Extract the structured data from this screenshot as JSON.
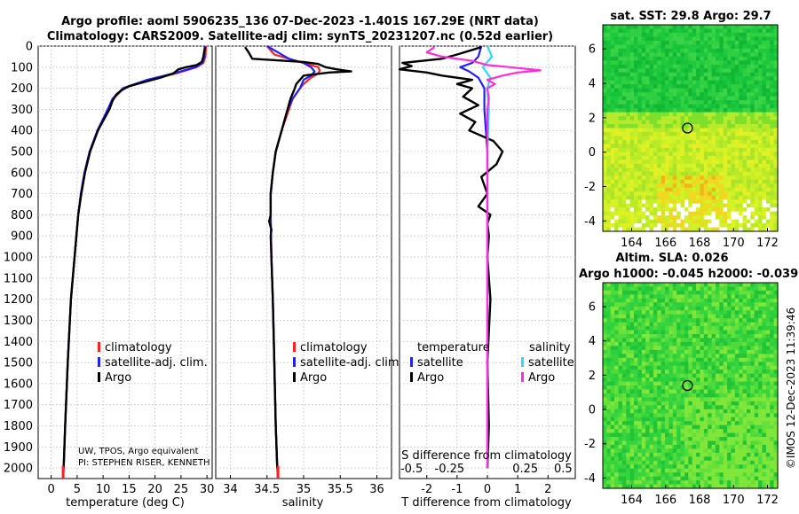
{
  "header": {
    "line1": "Argo profile: aoml 5906235_136 07-Dec-2023 -1.401S 167.29E (NRT data)",
    "line2": "Climatology: CARS2009. Satellite-adj clim: synTS_20231207.nc (0.52d earlier)"
  },
  "colors": {
    "climatology": "#ff2020",
    "satellite": "#1f1fff",
    "argo": "#000000",
    "sal_satellite": "#30d8ff",
    "sal_argo": "#ff2bdc"
  },
  "depth_axis": {
    "range": [
      0,
      2050
    ],
    "ticks": [
      0,
      100,
      200,
      300,
      400,
      500,
      600,
      700,
      800,
      900,
      1000,
      1100,
      1200,
      1300,
      1400,
      1500,
      1600,
      1700,
      1800,
      1900,
      2000
    ]
  },
  "chart_data": [
    {
      "type": "line",
      "id": "temperature",
      "xlabel": "temperature (deg C)",
      "xlim": [
        -2.5,
        31
      ],
      "xticks": [
        0,
        5,
        10,
        15,
        20,
        25,
        30
      ],
      "legend": [
        "climatology",
        "satellite-adj. clim.",
        "Argo"
      ],
      "note_line1": "UW, TPOS, Argo equivalent",
      "note_line2": "PI: STEPHEN RISER, KENNETH",
      "series": [
        {
          "name": "climatology",
          "color_key": "climatology",
          "depth": [
            0,
            50,
            80,
            100,
            130,
            160,
            200,
            250,
            300,
            400,
            500,
            600,
            700,
            800,
            1000,
            1200,
            1500,
            1800,
            2000,
            2050
          ],
          "values": [
            29.8,
            29.7,
            29.3,
            28.0,
            24.0,
            19.0,
            14.0,
            12.0,
            11.0,
            9.0,
            7.5,
            6.5,
            5.8,
            5.2,
            4.5,
            3.8,
            3.2,
            2.7,
            2.4,
            2.3
          ]
        },
        {
          "name": "satellite-adj. clim.",
          "color_key": "satellite",
          "depth": [
            0,
            50,
            80,
            100,
            130,
            160,
            200,
            250,
            300,
            400,
            500,
            600,
            700,
            800,
            1000,
            1200,
            1500,
            1800,
            2000,
            2050
          ],
          "values": [
            29.6,
            29.5,
            29.1,
            27.8,
            23.5,
            18.5,
            13.8,
            11.8,
            10.9,
            8.9,
            7.4,
            6.4,
            5.7,
            5.2,
            4.5,
            3.8,
            3.2,
            2.7,
            2.4,
            2.3
          ]
        },
        {
          "name": "Argo",
          "color_key": "argo",
          "depth": [
            5,
            50,
            75,
            90,
            100,
            110,
            130,
            150,
            170,
            190,
            210,
            230,
            260,
            300,
            400,
            500,
            600,
            700,
            800,
            1000,
            1200,
            1500,
            1800,
            2000
          ],
          "values": [
            29.6,
            29.3,
            29.0,
            28.0,
            26.0,
            24.5,
            23.5,
            21.0,
            18.0,
            15.0,
            13.5,
            12.5,
            11.8,
            11.2,
            9.0,
            7.5,
            6.5,
            5.8,
            5.2,
            4.5,
            3.8,
            3.2,
            2.7,
            2.4
          ]
        }
      ]
    },
    {
      "type": "line",
      "id": "salinity",
      "xlabel": "salinity",
      "xlim": [
        33.8,
        36.2
      ],
      "xticks": [
        34,
        34.5,
        35,
        35.5,
        36
      ],
      "legend": [
        "climatology",
        "satellite-adj. clim.",
        "Argo"
      ],
      "series": [
        {
          "name": "climatology",
          "color_key": "climatology",
          "depth": [
            0,
            40,
            70,
            90,
            100,
            115,
            130,
            150,
            180,
            200,
            250,
            300,
            400,
            500,
            600,
            700,
            800,
            1000,
            1200,
            1500,
            1800,
            2000,
            2050
          ],
          "values": [
            34.5,
            34.6,
            34.9,
            35.1,
            35.2,
            35.22,
            35.2,
            35.1,
            35.0,
            34.95,
            34.85,
            34.8,
            34.7,
            34.62,
            34.58,
            34.55,
            34.55,
            34.56,
            34.58,
            34.6,
            34.62,
            34.64,
            34.65
          ]
        },
        {
          "name": "satellite-adj. clim.",
          "color_key": "satellite",
          "depth": [
            0,
            30,
            60,
            80,
            100,
            120,
            140,
            160,
            200,
            250,
            300,
            400,
            500,
            600,
            700,
            800,
            1000,
            1200,
            1500,
            1800,
            2000,
            2050
          ],
          "values": [
            34.5,
            34.65,
            34.8,
            35.0,
            35.1,
            35.15,
            35.1,
            35.0,
            34.95,
            34.85,
            34.78,
            34.7,
            34.62,
            34.58,
            34.55,
            34.55,
            34.56,
            34.58,
            34.6,
            34.62,
            34.64,
            34.65
          ]
        },
        {
          "name": "Argo",
          "color_key": "argo",
          "depth": [
            5,
            30,
            60,
            75,
            85,
            100,
            110,
            115,
            120,
            125,
            140,
            160,
            180,
            200,
            250,
            300,
            400,
            500,
            600,
            700,
            800,
            830,
            870,
            900,
            1000,
            1200,
            1500,
            1800,
            2000
          ],
          "values": [
            34.2,
            34.25,
            34.3,
            35.0,
            35.2,
            35.3,
            35.45,
            35.55,
            35.65,
            35.35,
            35.0,
            34.95,
            34.9,
            34.88,
            34.82,
            34.78,
            34.7,
            34.62,
            34.58,
            34.55,
            34.55,
            34.53,
            34.56,
            34.55,
            34.56,
            34.58,
            34.6,
            34.62,
            34.64
          ]
        }
      ]
    },
    {
      "type": "line",
      "id": "differences",
      "xlabel": "T difference from climatology",
      "top_axis_label": "S difference from climatology",
      "xlim": [
        -2.9,
        2.9
      ],
      "xticks": [
        -2,
        -1,
        0,
        1,
        2
      ],
      "top_ticks": [
        -0.5,
        -0.25,
        0.25,
        0.5
      ],
      "legend": {
        "temperature": "temperature",
        "salinity": "salinity",
        "satellite": "satellite",
        "argo": "Argo"
      },
      "series": [
        {
          "name": "T satellite",
          "color_key": "satellite",
          "depth": [
            0,
            50,
            80,
            100,
            120,
            150,
            200,
            300,
            500,
            800,
            1200,
            2000
          ],
          "values": [
            -0.2,
            -0.3,
            -0.5,
            -0.9,
            -0.6,
            -0.3,
            -0.1,
            -0.1,
            0.0,
            0.0,
            0.0,
            0.0
          ]
        },
        {
          "name": "T Argo",
          "color_key": "argo",
          "depth": [
            5,
            40,
            60,
            80,
            95,
            110,
            125,
            140,
            160,
            180,
            200,
            240,
            280,
            320,
            360,
            400,
            450,
            500,
            560,
            620,
            700,
            760,
            800,
            840,
            900,
            1000,
            1200,
            1500,
            1800,
            2000
          ],
          "values": [
            -0.2,
            -1.0,
            -1.5,
            -2.8,
            -2.5,
            -2.9,
            -2.0,
            -1.5,
            -0.5,
            -1.0,
            -0.5,
            -0.8,
            -0.3,
            -0.9,
            -0.4,
            -0.6,
            0.2,
            0.5,
            0.3,
            -0.2,
            0.0,
            -0.3,
            0.1,
            0.0,
            0.05,
            0.0,
            0.1,
            0.0,
            0.05,
            0.0
          ]
        },
        {
          "name": "S satellite",
          "color_key": "sal_satellite",
          "depth": [
            0,
            50,
            100,
            150,
            200,
            300,
            500,
            800,
            1200,
            2000
          ],
          "values": [
            0.0,
            0.03,
            -0.03,
            0.02,
            0.0,
            0.01,
            0.0,
            0.0,
            0.0,
            0.0
          ]
        },
        {
          "name": "S Argo",
          "color_key": "sal_argo",
          "depth": [
            5,
            30,
            50,
            70,
            90,
            100,
            115,
            125,
            140,
            160,
            180,
            200,
            250,
            300,
            400,
            500,
            700,
            900,
            1100,
            1300,
            1500,
            1700,
            2000
          ],
          "values": [
            -0.35,
            -0.4,
            -0.3,
            -0.1,
            0.0,
            0.15,
            0.35,
            0.2,
            0.1,
            0.0,
            0.05,
            0.0,
            0.01,
            0.0,
            0.0,
            0.0,
            0.0,
            0.0,
            0.0,
            0.0,
            0.0,
            0.0,
            0.0
          ]
        }
      ]
    },
    {
      "type": "heatmap",
      "id": "sst_map",
      "title": "sat. SST: 29.8 Argo: 29.7",
      "xlim": [
        162.3,
        172.6
      ],
      "ylim": [
        -4.6,
        7.4
      ],
      "xticks": [
        164,
        166,
        168,
        170,
        172
      ],
      "yticks": [
        -4,
        -2,
        0,
        2,
        4,
        6
      ],
      "float_position": {
        "lon": 167.29,
        "lat": 1.4
      }
    },
    {
      "type": "heatmap",
      "id": "sla_map",
      "title_line1": "Altim. SLA: 0.026",
      "title_line2": "Argo h1000: -0.045 h2000: -0.039",
      "xlim": [
        162.3,
        172.6
      ],
      "ylim": [
        -4.6,
        7.4
      ],
      "xticks": [
        164,
        166,
        168,
        170,
        172
      ],
      "yticks": [
        -4,
        -2,
        0,
        2,
        4,
        6
      ],
      "float_position": {
        "lon": 167.29,
        "lat": 1.4
      }
    }
  ],
  "copyright": "©IMOS 12-Dec-2023 11:39:46"
}
